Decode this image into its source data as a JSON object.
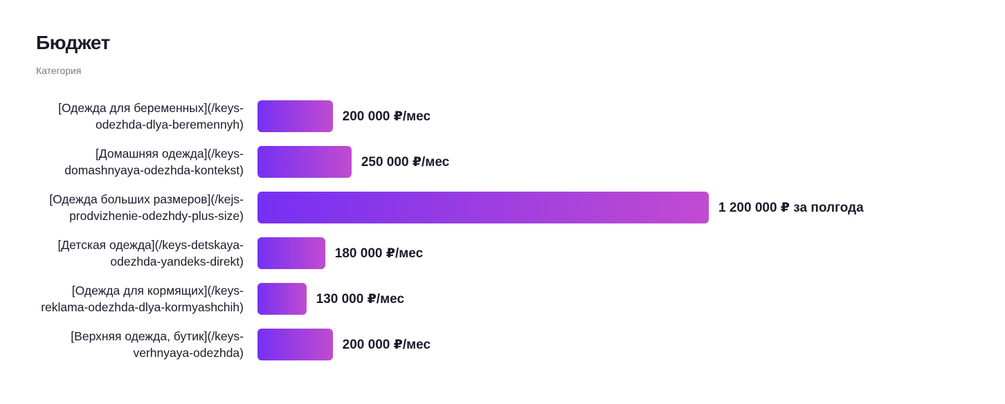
{
  "chart_data": {
    "type": "bar",
    "orientation": "horizontal",
    "title": "Бюджет",
    "subtitle": "Категория",
    "categories": [
      "[Одежда для беременных](/keys-odezhda-dlya-beremennyh)",
      "[Домашняя одежда](/keys-domashnyaya-odezhda-kontekst)",
      "[Одежда больших размеров](/kejs-prodvizhenie-odezhdy-plus-size)",
      "[Детская одежда](/keys-detskaya-odezhda-yandeks-direkt)",
      "[Одежда для кормящих](/keys-reklama-odezhda-dlya-kormyashchih)",
      "[Верхняя одежда, бутик](/keys-verhnyaya-odezhda)"
    ],
    "values": [
      200000,
      250000,
      1200000,
      180000,
      130000,
      200000
    ],
    "value_labels": [
      "200 000 ₽/мес",
      "250 000 ₽/мес",
      "1 200 000 ₽ за полгода",
      "180 000 ₽/мес",
      "130 000 ₽/мес",
      "200 000 ₽/мес"
    ],
    "colors": [
      "#7630f2",
      "#c14bd0"
    ]
  }
}
